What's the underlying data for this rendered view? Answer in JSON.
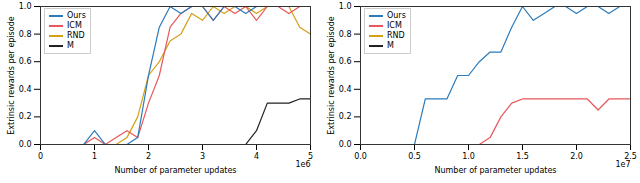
{
  "chart_data": [
    {
      "type": "line",
      "x_label": "Number of parameter updates",
      "y_label": "Extrinsic rewards per episode",
      "annotations": [
        "1e6"
      ],
      "legend": "upper left",
      "grid": false,
      "xlim": [
        0,
        5
      ],
      "ylim": [
        0,
        1.0
      ],
      "xticks": [
        0,
        1,
        2,
        3,
        4,
        5
      ],
      "yticks": [
        {
          "value": 0,
          "label": "0.0"
        },
        {
          "value": 0.2,
          "label": "0.2"
        },
        {
          "value": 0.4,
          "label": "0.4"
        },
        {
          "value": 0.6,
          "label": "0.6"
        },
        {
          "value": 0.8,
          "label": "0.8"
        },
        {
          "value": 1.0,
          "label": "1.0"
        }
      ],
      "x": [
        0,
        0.2,
        0.4,
        0.6,
        0.8,
        1.0,
        1.2,
        1.4,
        1.6,
        1.8,
        2.0,
        2.2,
        2.4,
        2.6,
        2.8,
        3.0,
        3.2,
        3.4,
        3.6,
        3.8,
        4.0,
        4.2,
        4.4,
        4.6,
        4.8,
        5.0
      ],
      "series": [
        {
          "name": "Ours",
          "color": "#2b7bba",
          "values": [
            0,
            0,
            0,
            0,
            0,
            0.1,
            0,
            0,
            0,
            0.05,
            0.5,
            0.85,
            1.0,
            0.95,
            1.0,
            1.0,
            0.9,
            1.0,
            1.0,
            0.95,
            1.0,
            1.0,
            1.0,
            1.0,
            1.0,
            1.0
          ]
        },
        {
          "name": "ICM",
          "color": "#e8575a",
          "values": [
            0,
            0,
            0,
            0,
            0,
            0.05,
            0,
            0.05,
            0.1,
            0.05,
            0.3,
            0.5,
            0.85,
            0.95,
            1.0,
            1.0,
            0.9,
            1.0,
            0.95,
            1.0,
            0.9,
            1.0,
            1.0,
            0.95,
            1.0,
            1.0
          ]
        },
        {
          "name": "RND",
          "color": "#d4a017",
          "values": [
            0,
            0,
            0,
            0,
            0,
            0,
            0,
            0,
            0.05,
            0.2,
            0.5,
            0.6,
            0.75,
            0.8,
            0.95,
            0.9,
            1.0,
            0.95,
            1.0,
            1.0,
            0.95,
            1.0,
            1.0,
            1.0,
            0.85,
            0.8
          ]
        },
        {
          "name": "M",
          "color": "#222222",
          "values": [
            0,
            0,
            0,
            0,
            0,
            0,
            0,
            0,
            0,
            0,
            0,
            0,
            0,
            0,
            0,
            0,
            0,
            0,
            0,
            0,
            0.1,
            0.3,
            0.3,
            0.3,
            0.33,
            0.33
          ]
        }
      ]
    },
    {
      "type": "line",
      "x_label": "Number of parameter updates",
      "y_label": "Extrinsic rewards per episode",
      "annotations": [
        "1e7"
      ],
      "legend": "upper left",
      "grid": false,
      "xlim": [
        0,
        2.5
      ],
      "ylim": [
        0,
        1.0
      ],
      "xticks": [
        {
          "value": 0,
          "label": "0.0"
        },
        {
          "value": 0.5,
          "label": "0.5"
        },
        {
          "value": 1.0,
          "label": "1.0"
        },
        {
          "value": 1.5,
          "label": "1.5"
        },
        {
          "value": 2.0,
          "label": "2.0"
        },
        {
          "value": 2.5,
          "label": "2.5"
        }
      ],
      "yticks": [
        {
          "value": 0,
          "label": "0.0"
        },
        {
          "value": 0.2,
          "label": "0.2"
        },
        {
          "value": 0.4,
          "label": "0.4"
        },
        {
          "value": 0.6,
          "label": "0.6"
        },
        {
          "value": 0.8,
          "label": "0.8"
        },
        {
          "value": 1.0,
          "label": "1.0"
        }
      ],
      "x": [
        0,
        0.1,
        0.2,
        0.3,
        0.4,
        0.5,
        0.6,
        0.7,
        0.8,
        0.9,
        1.0,
        1.1,
        1.2,
        1.3,
        1.4,
        1.5,
        1.6,
        1.7,
        1.8,
        1.9,
        2.0,
        2.1,
        2.2,
        2.3,
        2.4,
        2.5
      ],
      "series": [
        {
          "name": "Ours",
          "color": "#2b7bba",
          "values": [
            0,
            0,
            0,
            0,
            0,
            0,
            0.33,
            0.33,
            0.33,
            0.5,
            0.5,
            0.6,
            0.67,
            0.67,
            0.85,
            1.0,
            0.9,
            0.95,
            1.0,
            1.0,
            0.95,
            1.0,
            1.0,
            0.95,
            1.0,
            1.0
          ]
        },
        {
          "name": "ICM",
          "color": "#e8575a",
          "values": [
            0,
            0,
            0,
            0,
            0,
            0,
            0,
            0,
            0,
            0,
            0,
            0,
            0.05,
            0.2,
            0.3,
            0.33,
            0.33,
            0.33,
            0.33,
            0.33,
            0.33,
            0.33,
            0.25,
            0.33,
            0.33,
            0.33
          ]
        },
        {
          "name": "RND",
          "color": "#d4a017",
          "values": [
            0,
            0,
            0,
            0,
            0,
            0,
            0,
            0,
            0,
            0,
            0,
            0,
            0,
            0,
            0,
            0,
            0,
            0,
            0,
            0,
            0,
            0,
            0,
            0,
            0,
            0
          ]
        },
        {
          "name": "M",
          "color": "#222222",
          "values": [
            0,
            0,
            0,
            0,
            0,
            0,
            0,
            0,
            0,
            0,
            0,
            0,
            0,
            0,
            0,
            0,
            0,
            0,
            0,
            0,
            0,
            0,
            0,
            0,
            0,
            0
          ]
        }
      ]
    }
  ]
}
